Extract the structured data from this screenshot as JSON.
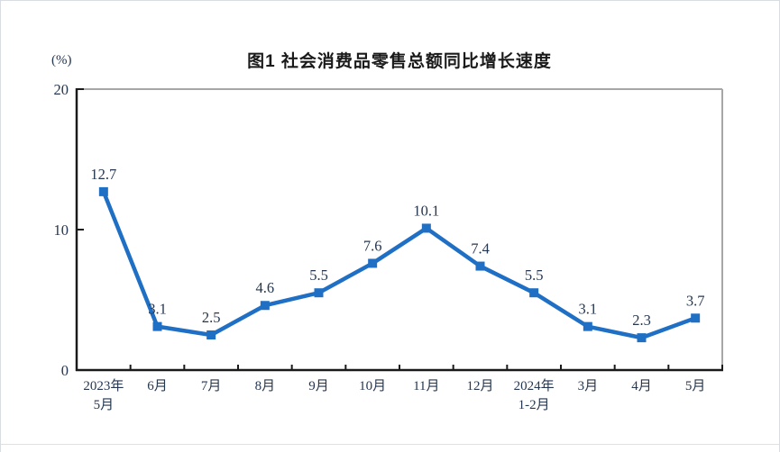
{
  "page": {
    "bottom_divider": true
  },
  "chart_data": {
    "type": "line",
    "title": "图1  社会消费品零售总额同比增长速度",
    "unit": "(%)",
    "categories": [
      [
        "2023年",
        "5月"
      ],
      [
        "6月"
      ],
      [
        "7月"
      ],
      [
        "8月"
      ],
      [
        "9月"
      ],
      [
        "10月"
      ],
      [
        "11月"
      ],
      [
        "12月"
      ],
      [
        "2024年",
        "1-2月"
      ],
      [
        "3月"
      ],
      [
        "4月"
      ],
      [
        "5月"
      ]
    ],
    "series": [
      {
        "name": "社会消费品零售总额同比增长速度",
        "values": [
          12.7,
          3.1,
          2.5,
          4.6,
          5.5,
          7.6,
          10.1,
          7.4,
          5.5,
          3.1,
          2.3,
          3.7
        ],
        "labels": [
          "12.7",
          "3.1",
          "2.5",
          "4.6",
          "5.5",
          "7.6",
          "10.1",
          "7.4",
          "5.5",
          "3.1",
          "2.3",
          "3.7"
        ]
      }
    ],
    "ylabel": "(%)",
    "xlabel": "",
    "ylim": [
      0,
      20
    ],
    "yticks": [
      0,
      10,
      20
    ],
    "grid": false,
    "legend_position": "none",
    "marker": "square",
    "colors": {
      "line": "#1f6fc5",
      "marker": "#1f6fc5",
      "data_label": "#253650",
      "axis_label": "#253650",
      "axis_dark": "#1a1a1a",
      "box_light": "#a6a6a6",
      "title": "#1a1a1a"
    }
  }
}
